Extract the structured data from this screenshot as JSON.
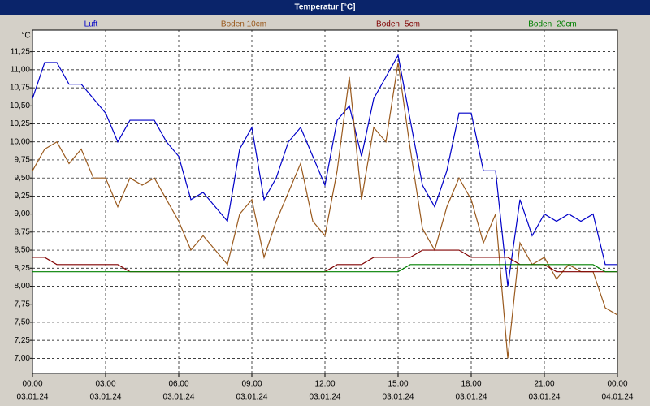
{
  "chart_data": {
    "type": "line",
    "title": "Temperatur [°C]",
    "y_label": "°C",
    "x": [
      0,
      0.5,
      1,
      1.5,
      2,
      2.5,
      3,
      3.5,
      4,
      4.5,
      5,
      5.5,
      6,
      6.5,
      7,
      7.5,
      8,
      8.5,
      9,
      9.5,
      10,
      10.5,
      11,
      11.5,
      12,
      12.5,
      13,
      13.5,
      14,
      14.5,
      15,
      15.5,
      16,
      16.5,
      17,
      17.5,
      18,
      18.5,
      19,
      19.5,
      20,
      20.5,
      21,
      21.5,
      22,
      22.5,
      23,
      23.5,
      24
    ],
    "series": [
      {
        "name": "Luft",
        "color": "#0000c8",
        "values": [
          10.6,
          11.1,
          11.1,
          10.8,
          10.8,
          10.6,
          10.4,
          10.0,
          10.3,
          10.3,
          10.3,
          10.0,
          9.8,
          9.2,
          9.3,
          9.1,
          8.9,
          9.9,
          10.2,
          9.2,
          9.5,
          10.0,
          10.2,
          9.8,
          9.4,
          10.3,
          10.5,
          9.8,
          10.6,
          10.9,
          11.2,
          10.3,
          9.4,
          9.1,
          9.6,
          10.4,
          10.4,
          9.6,
          9.6,
          8.0,
          9.2,
          8.7,
          9.0,
          8.9,
          9.0,
          8.9,
          9.0,
          8.3,
          8.3
        ]
      },
      {
        "name": "Boden 10cm",
        "color": "#9a5a1e",
        "values": [
          9.6,
          9.9,
          10.0,
          9.7,
          9.9,
          9.5,
          9.5,
          9.1,
          9.5,
          9.4,
          9.5,
          9.2,
          8.9,
          8.5,
          8.7,
          8.5,
          8.3,
          9.0,
          9.2,
          8.4,
          8.9,
          9.3,
          9.7,
          8.9,
          8.7,
          9.6,
          10.9,
          9.2,
          10.2,
          10.0,
          11.1,
          9.9,
          8.8,
          8.5,
          9.1,
          9.5,
          9.2,
          8.6,
          9.0,
          7.0,
          8.6,
          8.3,
          8.4,
          8.1,
          8.3,
          8.2,
          8.2,
          7.7,
          7.6
        ]
      },
      {
        "name": "Boden -5cm",
        "color": "#800000",
        "values": [
          8.4,
          8.4,
          8.3,
          8.3,
          8.3,
          8.3,
          8.3,
          8.3,
          8.2,
          8.2,
          8.2,
          8.2,
          8.2,
          8.2,
          8.2,
          8.2,
          8.2,
          8.2,
          8.2,
          8.2,
          8.2,
          8.2,
          8.2,
          8.2,
          8.2,
          8.3,
          8.3,
          8.3,
          8.4,
          8.4,
          8.4,
          8.4,
          8.5,
          8.5,
          8.5,
          8.5,
          8.4,
          8.4,
          8.4,
          8.4,
          8.3,
          8.3,
          8.3,
          8.2,
          8.2,
          8.2,
          8.2,
          8.2,
          8.2
        ]
      },
      {
        "name": "Boden -20cm",
        "color": "#008000",
        "values": [
          8.2,
          8.2,
          8.2,
          8.2,
          8.2,
          8.2,
          8.2,
          8.2,
          8.2,
          8.2,
          8.2,
          8.2,
          8.2,
          8.2,
          8.2,
          8.2,
          8.2,
          8.2,
          8.2,
          8.2,
          8.2,
          8.2,
          8.2,
          8.2,
          8.2,
          8.2,
          8.2,
          8.2,
          8.2,
          8.2,
          8.2,
          8.3,
          8.3,
          8.3,
          8.3,
          8.3,
          8.3,
          8.3,
          8.3,
          8.3,
          8.3,
          8.3,
          8.3,
          8.3,
          8.3,
          8.3,
          8.3,
          8.2,
          8.2
        ]
      }
    ],
    "xlim": [
      0,
      24
    ],
    "xticks": [
      {
        "value": 0,
        "label": "00:00"
      },
      {
        "value": 3,
        "label": "03:00"
      },
      {
        "value": 6,
        "label": "06:00"
      },
      {
        "value": 9,
        "label": "09:00"
      },
      {
        "value": 12,
        "label": "12:00"
      },
      {
        "value": 15,
        "label": "15:00"
      },
      {
        "value": 18,
        "label": "18:00"
      },
      {
        "value": 21,
        "label": "21:00"
      },
      {
        "value": 24,
        "label": "00:00"
      }
    ],
    "xtick_dates": [
      "03.01.24",
      "03.01.24",
      "03.01.24",
      "03.01.24",
      "03.01.24",
      "03.01.24",
      "03.01.24",
      "03.01.24",
      "04.01.24"
    ],
    "ylim": [
      6.79,
      11.55
    ],
    "yticks": [
      {
        "value": 7,
        "label": "7,00"
      },
      {
        "value": 7.25,
        "label": "7,25"
      },
      {
        "value": 7.5,
        "label": "7,50"
      },
      {
        "value": 7.75,
        "label": "7,75"
      },
      {
        "value": 8,
        "label": "8,00"
      },
      {
        "value": 8.25,
        "label": "8,25"
      },
      {
        "value": 8.5,
        "label": "8,50"
      },
      {
        "value": 8.75,
        "label": "8,75"
      },
      {
        "value": 9,
        "label": "9,00"
      },
      {
        "value": 9.25,
        "label": "9,25"
      },
      {
        "value": 9.5,
        "label": "9,50"
      },
      {
        "value": 9.75,
        "label": "9,75"
      },
      {
        "value": 10,
        "label": "10,00"
      },
      {
        "value": 10.25,
        "label": "10,25"
      },
      {
        "value": 10.5,
        "label": "10,50"
      },
      {
        "value": 10.75,
        "label": "10,75"
      },
      {
        "value": 11,
        "label": "11,00"
      },
      {
        "value": 11.25,
        "label": "11,25"
      }
    ],
    "grid": true
  }
}
